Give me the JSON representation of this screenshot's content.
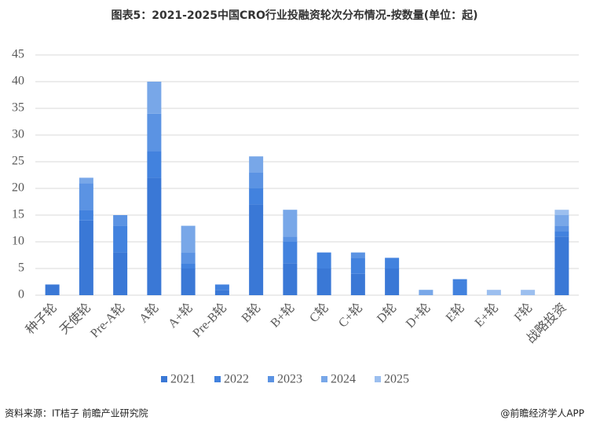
{
  "chart_data": {
    "type": "stacked_bar",
    "title": "图表5：2021-2025中国CRO行业投融资轮次分布情况-按数量(单位：起)",
    "categories": [
      "种子轮",
      "天使轮",
      "Pre-A轮",
      "A轮",
      "A+轮",
      "Pre-B轮",
      "B轮",
      "B+轮",
      "C轮",
      "C+轮",
      "D轮",
      "D+轮",
      "E轮",
      "E+轮",
      "F轮",
      "战略投资"
    ],
    "series": [
      {
        "name": "2021",
        "color": "#3a78d6",
        "values": [
          2,
          14,
          8,
          22,
          5,
          1,
          17,
          6,
          5,
          4,
          5,
          0,
          0,
          0,
          0,
          11
        ]
      },
      {
        "name": "2022",
        "color": "#4282de",
        "values": [
          0,
          2,
          5,
          5,
          1,
          1,
          3,
          4,
          3,
          3,
          2,
          0,
          3,
          0,
          0,
          1
        ]
      },
      {
        "name": "2023",
        "color": "#5b93e3",
        "values": [
          0,
          5,
          2,
          7,
          2,
          0,
          3,
          1,
          0,
          1,
          0,
          0,
          0,
          0,
          0,
          1
        ]
      },
      {
        "name": "2024",
        "color": "#78a7e8",
        "values": [
          0,
          1,
          0,
          6,
          5,
          0,
          3,
          5,
          0,
          0,
          0,
          1,
          0,
          0,
          0,
          2
        ]
      },
      {
        "name": "2025",
        "color": "#9cbfef",
        "values": [
          0,
          0,
          0,
          0,
          0,
          0,
          0,
          0,
          0,
          0,
          0,
          0,
          0,
          1,
          1,
          1
        ]
      }
    ],
    "ylim": [
      0,
      45
    ],
    "yticks": [
      0,
      5,
      10,
      15,
      20,
      25,
      30,
      35,
      40,
      45
    ],
    "grid": true,
    "legend": "bottom",
    "source": "资料来源：IT桔子 前瞻产业研究院",
    "credit": "@前瞻经济学人APP"
  }
}
